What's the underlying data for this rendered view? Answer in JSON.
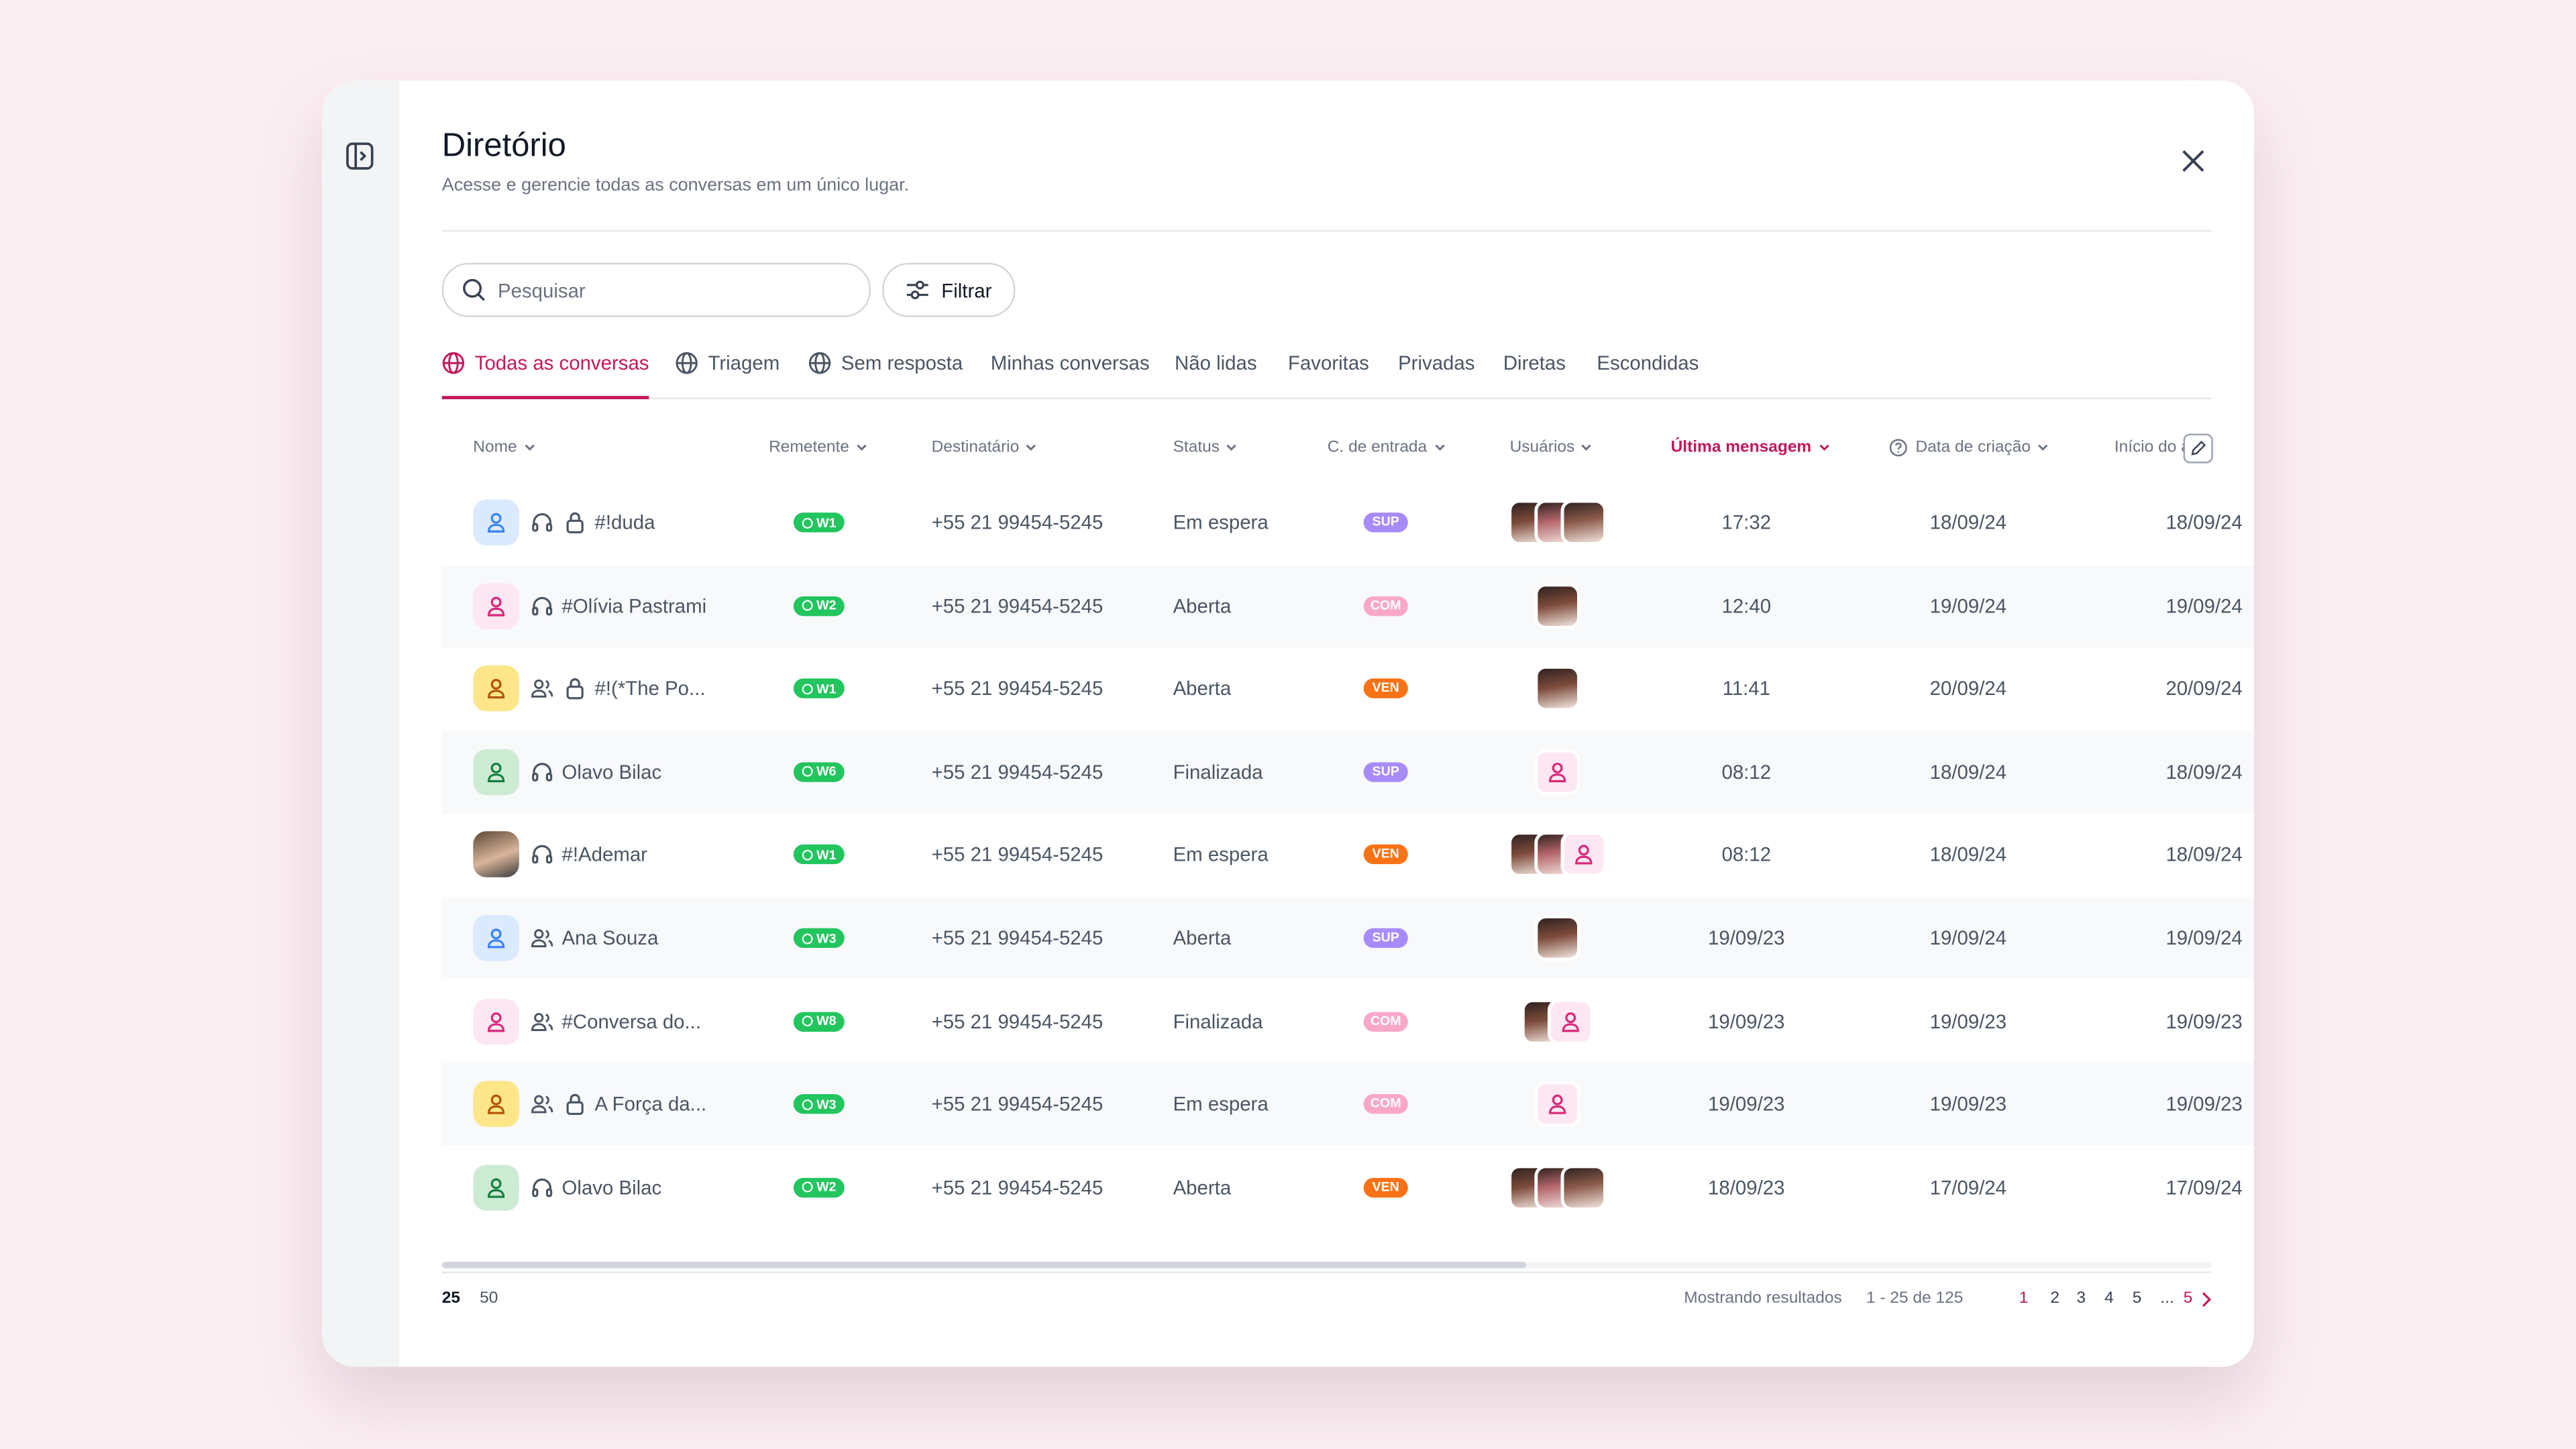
{
  "header": {
    "title": "Diretório",
    "subtitle": "Acesse e gerencie todas as conversas em um único lugar."
  },
  "search": {
    "placeholder": "Pesquisar"
  },
  "filter": {
    "label": "Filtrar"
  },
  "tabs": [
    "Todas as conversas",
    "Triagem",
    "Sem resposta",
    "Minhas conversas",
    "Não lidas",
    "Favoritas",
    "Privadas",
    "Diretas",
    "Escondidas"
  ],
  "table": {
    "columns": [
      "Nome",
      "Remetente",
      "Destinatário",
      "Status",
      "C. de entrada",
      "Usuários",
      "Última mensagem",
      "Data de criação",
      "Início do a"
    ],
    "rows": [
      {
        "name": "#!duda",
        "sender": "W1",
        "recipient": "+55 21 99454-5245",
        "status": "Em espera",
        "channel": {
          "label": "SUP",
          "color": "#a78bfa"
        },
        "last": "17:32",
        "created": "18/09/24",
        "start": "18/09/24"
      },
      {
        "name": "#Olívia Pastrami",
        "sender": "W2",
        "recipient": "+55 21 99454-5245",
        "status": "Aberta",
        "channel": {
          "label": "COM",
          "color": "#f9a8c9"
        },
        "last": "12:40",
        "created": "19/09/24",
        "start": "19/09/24"
      },
      {
        "name": "#!(*The Po...",
        "sender": "W1",
        "recipient": "+55 21 99454-5245",
        "status": "Aberta",
        "channel": {
          "label": "VEN",
          "color": "#f97316"
        },
        "last": "11:41",
        "created": "20/09/24",
        "start": "20/09/24"
      },
      {
        "name": "Olavo Bilac",
        "sender": "W6",
        "recipient": "+55 21 99454-5245",
        "status": "Finalizada",
        "channel": {
          "label": "SUP",
          "color": "#a78bfa"
        },
        "last": "08:12",
        "created": "18/09/24",
        "start": "18/09/24"
      },
      {
        "name": "#!Ademar",
        "sender": "W1",
        "recipient": "+55 21 99454-5245",
        "status": "Em espera",
        "channel": {
          "label": "VEN",
          "color": "#f97316"
        },
        "last": "08:12",
        "created": "18/09/24",
        "start": "18/09/24"
      },
      {
        "name": "Ana Souza",
        "sender": "W3",
        "recipient": "+55 21 99454-5245",
        "status": "Aberta",
        "channel": {
          "label": "SUP",
          "color": "#a78bfa"
        },
        "last": "19/09/23",
        "created": "19/09/24",
        "start": "19/09/24"
      },
      {
        "name": "#Conversa do...",
        "sender": "W8",
        "recipient": "+55 21 99454-5245",
        "status": "Finalizada",
        "channel": {
          "label": "COM",
          "color": "#f9a8c9"
        },
        "last": "19/09/23",
        "created": "19/09/23",
        "start": "19/09/23"
      },
      {
        "name": "A Força da...",
        "sender": "W3",
        "recipient": "+55 21 99454-5245",
        "status": "Em espera",
        "channel": {
          "label": "COM",
          "color": "#f9a8c9"
        },
        "last": "19/09/23",
        "created": "19/09/23",
        "start": "19/09/23"
      },
      {
        "name": "Olavo Bilac",
        "sender": "W2",
        "recipient": "+55 21 99454-5245",
        "status": "Aberta",
        "channel": {
          "label": "VEN",
          "color": "#f97316"
        },
        "last": "18/09/23",
        "created": "17/09/24",
        "start": "17/09/24"
      }
    ]
  },
  "footer": {
    "page_sizes": [
      "25",
      "50"
    ],
    "showing": "Mostrando resultados",
    "range": "1 - 25 de 125",
    "pages": [
      "1",
      "2",
      "3",
      "4",
      "5",
      "...",
      "5"
    ]
  }
}
